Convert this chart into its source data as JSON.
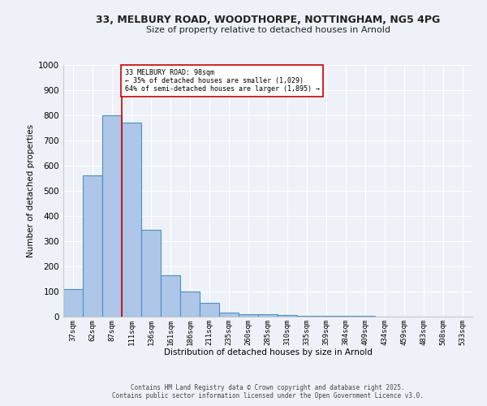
{
  "title_line1": "33, MELBURY ROAD, WOODTHORPE, NOTTINGHAM, NG5 4PG",
  "title_line2": "Size of property relative to detached houses in Arnold",
  "xlabel": "Distribution of detached houses by size in Arnold",
  "ylabel": "Number of detached properties",
  "categories": [
    "37sqm",
    "62sqm",
    "87sqm",
    "111sqm",
    "136sqm",
    "161sqm",
    "186sqm",
    "211sqm",
    "235sqm",
    "260sqm",
    "285sqm",
    "310sqm",
    "335sqm",
    "359sqm",
    "384sqm",
    "409sqm",
    "434sqm",
    "459sqm",
    "483sqm",
    "508sqm",
    "533sqm"
  ],
  "values": [
    110,
    560,
    800,
    770,
    345,
    165,
    100,
    55,
    15,
    10,
    10,
    5,
    2,
    2,
    2,
    2,
    1,
    1,
    1,
    1,
    1
  ],
  "bar_color": "#aec6e8",
  "bar_edge_color": "#4a90c4",
  "red_line_x": 2.5,
  "annotation_text": "33 MELBURY ROAD: 98sqm\n← 35% of detached houses are smaller (1,029)\n64% of semi-detached houses are larger (1,895) →",
  "annotation_box_color": "#ffffff",
  "annotation_box_edge_color": "#cc0000",
  "annotation_text_color": "#000000",
  "red_line_color": "#cc0000",
  "ylim": [
    0,
    1000
  ],
  "yticks": [
    0,
    100,
    200,
    300,
    400,
    500,
    600,
    700,
    800,
    900,
    1000
  ],
  "background_color": "#eef2f8",
  "grid_color": "#ffffff",
  "footer_line1": "Contains HM Land Registry data © Crown copyright and database right 2025.",
  "footer_line2": "Contains public sector information licensed under the Open Government Licence v3.0."
}
